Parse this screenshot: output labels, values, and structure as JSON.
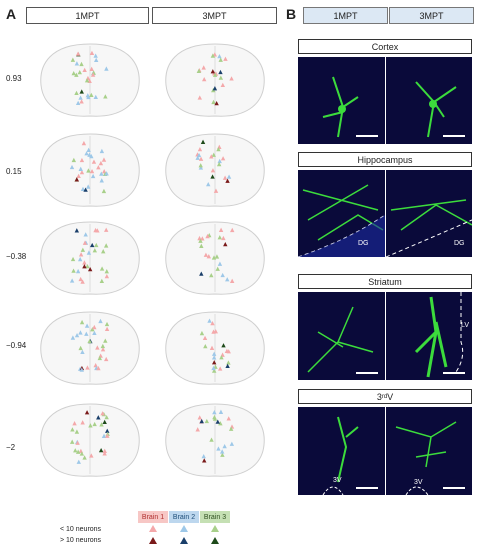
{
  "panelA": {
    "letter": "A",
    "col1": "1MPT",
    "col2": "3MPT",
    "levels": [
      "0.93",
      "0.15",
      "−0.38",
      "−0.94",
      "−2"
    ]
  },
  "panelB": {
    "letter": "B",
    "col1": "1MPT",
    "col2": "3MPT",
    "regions": [
      {
        "title": "Cortex",
        "label1": "",
        "label2": ""
      },
      {
        "title": "Hippocampus",
        "label1": "DG",
        "label2": "DG"
      },
      {
        "title": "Striatum",
        "label1": "",
        "label2": "LV"
      },
      {
        "title_main": "3",
        "title_sup": "rd",
        "title_tail": " V",
        "label1": "3V",
        "label2": "3V"
      }
    ]
  },
  "legend": {
    "brain1": "Brain 1",
    "brain2": "Brain 2",
    "brain3": "Brain 3",
    "row1": "< 10 neurons",
    "row2": "> 10 neurons",
    "colors": {
      "brain1_light": "#f4a8aa",
      "brain1_dark": "#7a1a1a",
      "brain2_light": "#9ec8e8",
      "brain2_dark": "#1a3f6a",
      "brain3_light": "#a8d08a",
      "brain3_dark": "#1e4a1a",
      "brain1_bg": "#f7c7c5",
      "brain2_bg": "#bdd7ee",
      "brain3_bg": "#c5e0b4"
    }
  }
}
